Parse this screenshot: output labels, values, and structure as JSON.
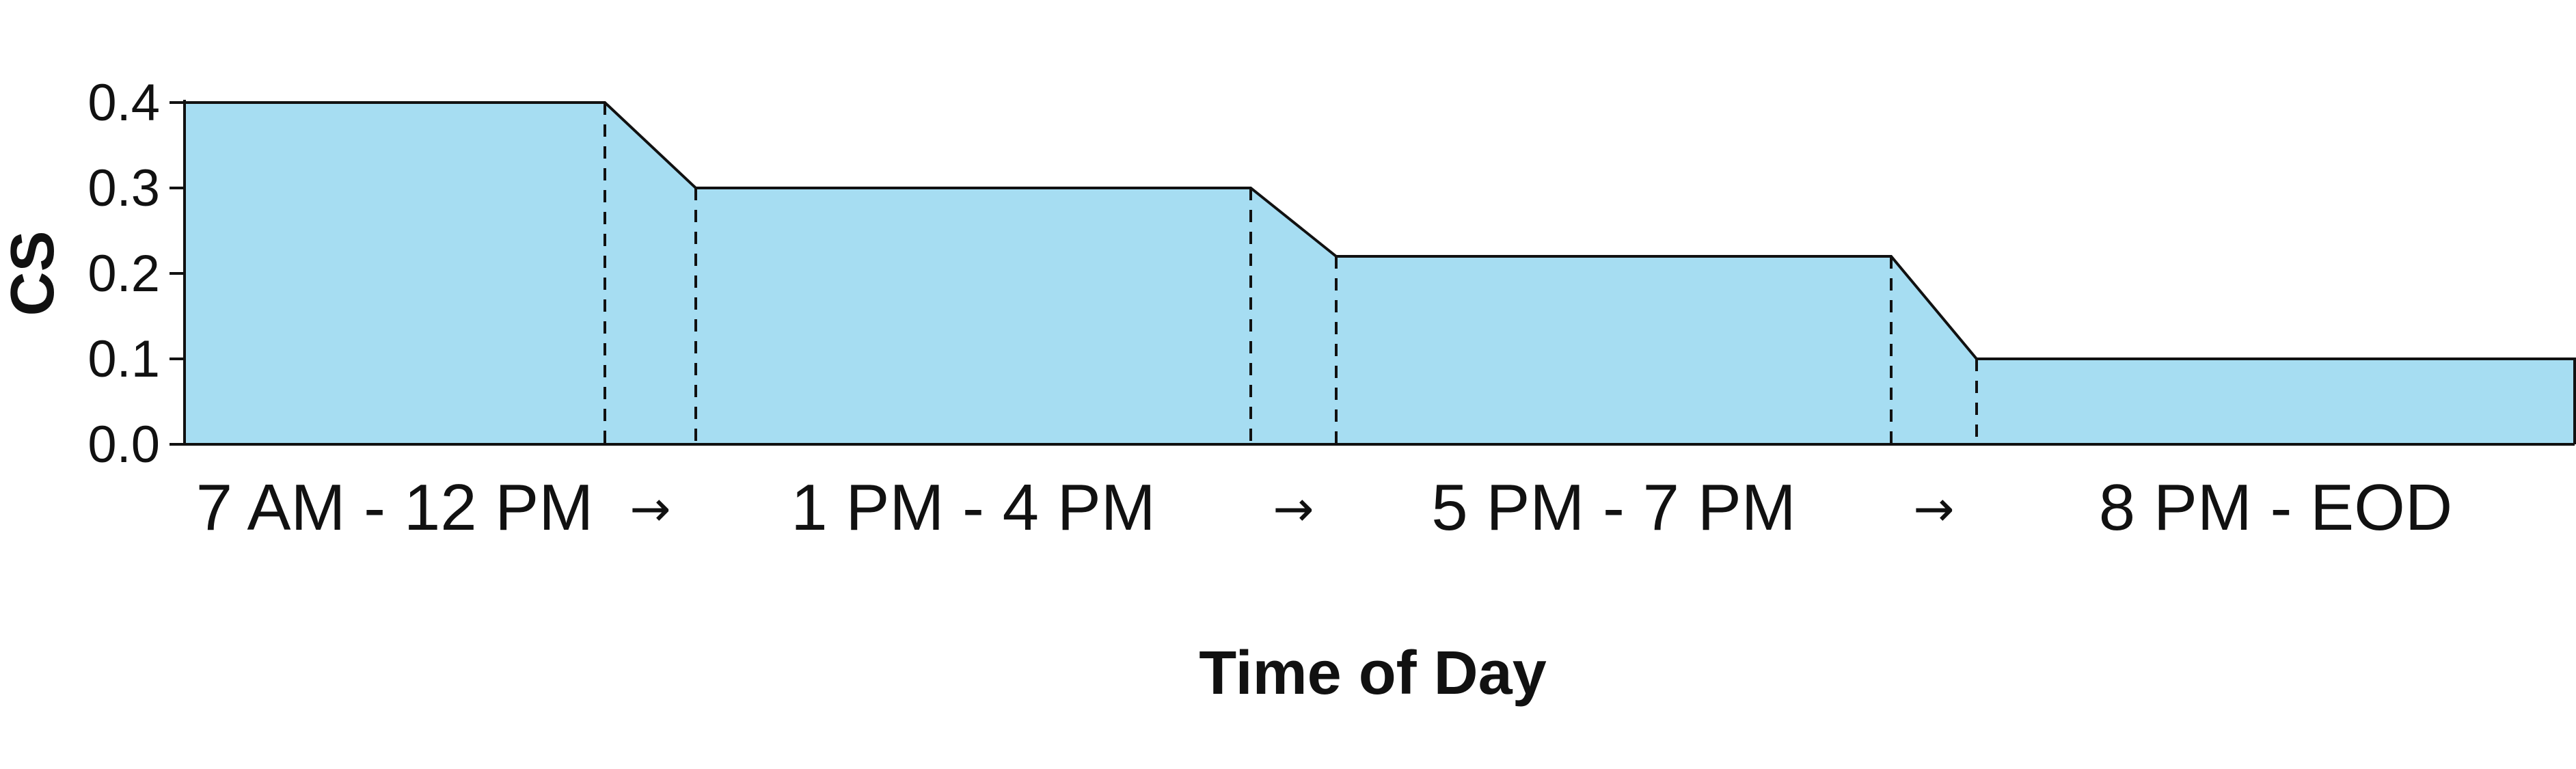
{
  "chart_data": {
    "type": "area",
    "title": "",
    "xlabel": "Time of Day",
    "ylabel": "CS",
    "ylim": [
      0,
      0.4
    ],
    "y_ticks": [
      "0.0",
      "0.1",
      "0.2",
      "0.3",
      "0.4"
    ],
    "grid": false,
    "fill_color": "#a6ddf2",
    "edge_color": "#111111",
    "segments": [
      {
        "label": "7 AM - 12 PM",
        "value": 0.4
      },
      {
        "label": "1 PM - 4 PM",
        "value": 0.3
      },
      {
        "label": "5 PM - 7 PM",
        "value": 0.22
      },
      {
        "label": "8 PM - EOD",
        "value": 0.1
      }
    ],
    "transition_label": "→"
  }
}
